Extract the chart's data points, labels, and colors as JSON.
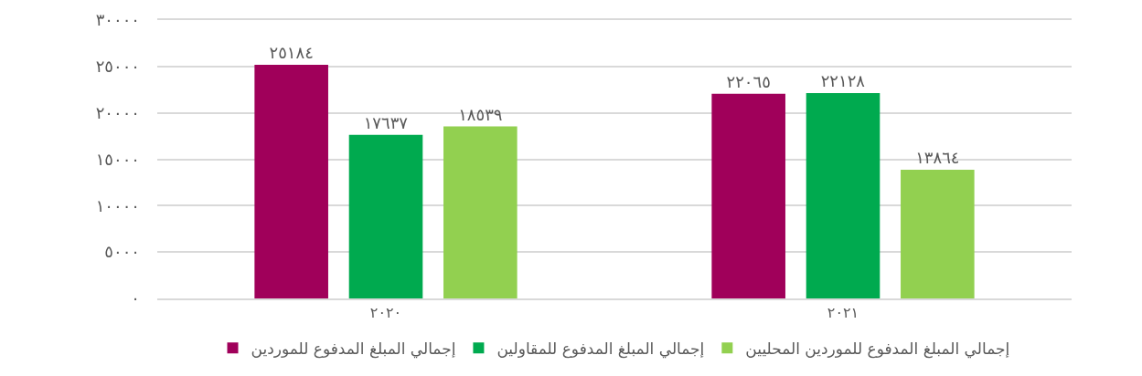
{
  "chart_data": {
    "type": "bar",
    "categories": [
      "٢٠٢٠",
      "٢٠٢١"
    ],
    "series": [
      {
        "name": "إجمالي المبلغ المدفوع للموردين",
        "color": "#a0005a",
        "values": [
          25184,
          22065
        ],
        "value_labels": [
          "٢٥١٨٤",
          "٢٢٠٦٥"
        ]
      },
      {
        "name": "إجمالي المبلغ المدفوع للمقاولين",
        "color": "#00aa4f",
        "values": [
          17637,
          22128
        ],
        "value_labels": [
          "١٧٦٣٧",
          "٢٢١٢٨"
        ]
      },
      {
        "name": "إجمالي المبلغ المدفوع للموردين المحليين",
        "color": "#92d050",
        "values": [
          18539,
          13864
        ],
        "value_labels": [
          "١٨٥٣٩",
          "١٣٨٦٤"
        ]
      }
    ],
    "ylim": [
      0,
      30000
    ],
    "yticks": [
      {
        "value": 0,
        "label": "٠"
      },
      {
        "value": 5000,
        "label": "٥٠٠٠"
      },
      {
        "value": 10000,
        "label": "١٠٠٠٠"
      },
      {
        "value": 15000,
        "label": "١٥٠٠٠"
      },
      {
        "value": 20000,
        "label": "٢٠٠٠٠"
      },
      {
        "value": 25000,
        "label": "٢٥٠٠٠"
      },
      {
        "value": 30000,
        "label": "٣٠٠٠٠"
      }
    ],
    "grid": "y",
    "legend": "bottom"
  }
}
